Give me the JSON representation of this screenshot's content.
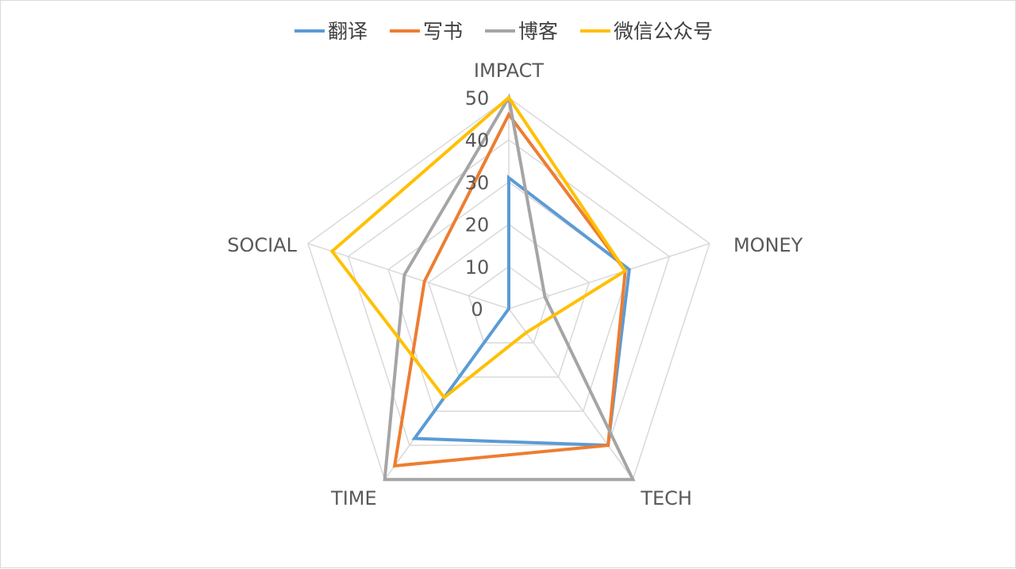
{
  "chart_data": {
    "type": "radar",
    "categories": [
      "IMPACT",
      "MONEY",
      "TECH",
      "TIME",
      "SOCIAL"
    ],
    "rlim": [
      0,
      50
    ],
    "ticks": [
      "0",
      "10",
      "20",
      "30",
      "40",
      "50"
    ],
    "grid": true,
    "legend_position": "top",
    "series": [
      {
        "name": "翻译",
        "color": "#5b9bd5",
        "values": [
          31,
          30,
          40,
          38,
          0
        ]
      },
      {
        "name": "写书",
        "color": "#ed7d31",
        "values": [
          46,
          29,
          40,
          46,
          21
        ]
      },
      {
        "name": "博客",
        "color": "#a5a5a5",
        "values": [
          50,
          9,
          50,
          50,
          26
        ]
      },
      {
        "name": "微信公众号",
        "color": "#ffc000",
        "values": [
          50,
          29,
          7,
          26,
          44
        ]
      }
    ]
  }
}
